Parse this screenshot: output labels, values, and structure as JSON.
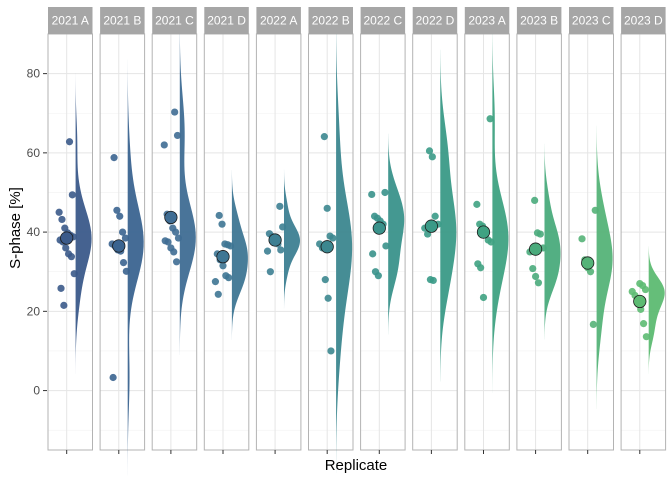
{
  "chart_data": {
    "type": "scatter",
    "subtype": "raincloud (half-violin + jittered points + mean point), faceted",
    "xlabel": "Replicate",
    "ylabel": "S-phase [%]",
    "ylim": [
      -15,
      90
    ],
    "yticks": [
      0,
      20,
      40,
      60,
      80
    ],
    "grid": true,
    "legend": "none",
    "colors": {
      "strip_bg": "#a6a6a6",
      "panel_border": "#b3b3b3",
      "grid": "#e5e5e5",
      "mean_stroke": "#1a1a1a"
    },
    "facets": [
      {
        "label": "2021 A",
        "color": "#3b5a8a",
        "mean": 38.5,
        "points": [
          62.8,
          49.4,
          45.0,
          43.2,
          41.0,
          39.8,
          39.2,
          38.8,
          38.0,
          37.5,
          36.0,
          34.5,
          33.8,
          29.5,
          25.8,
          21.5
        ]
      },
      {
        "label": "2021 B",
        "color": "#3b6490",
        "mean": 36.5,
        "points": [
          58.8,
          45.5,
          44.0,
          40.0,
          38.5,
          37.0,
          36.5,
          35.5,
          35.2,
          32.3,
          30.1,
          3.3
        ]
      },
      {
        "label": "2021 C",
        "color": "#3f6d94",
        "mean": 43.7,
        "points": [
          70.3,
          64.4,
          62.0,
          44.5,
          42.8,
          41.0,
          40.0,
          38.5,
          37.8,
          37.5,
          36.0,
          35.0,
          32.5
        ]
      },
      {
        "label": "2021 D",
        "color": "#3e7694",
        "mean": 33.8,
        "points": [
          44.2,
          42.0,
          37.0,
          36.8,
          36.5,
          34.5,
          33.0,
          31.5,
          29.0,
          28.5,
          27.5,
          24.3
        ]
      },
      {
        "label": "2022 A",
        "color": "#3d7f92",
        "mean": 38.0,
        "points": [
          46.5,
          41.3,
          39.6,
          38.9,
          38.0,
          37.0,
          35.5,
          35.2,
          30.0
        ]
      },
      {
        "label": "2022 B",
        "color": "#3c878f",
        "mean": 36.3,
        "points": [
          64.1,
          46.0,
          39.0,
          38.5,
          37.0,
          36.0,
          28.0,
          23.3,
          10.0
        ]
      },
      {
        "label": "2022 C",
        "color": "#3a928b",
        "mean": 41.0,
        "points": [
          50.0,
          49.5,
          44.0,
          43.5,
          42.8,
          42.0,
          36.5,
          34.5,
          30.0,
          29.0
        ]
      },
      {
        "label": "2022 D",
        "color": "#3a9a87",
        "mean": 41.5,
        "points": [
          60.5,
          59.0,
          44.0,
          42.0,
          41.0,
          39.5,
          28.0,
          27.8
        ]
      },
      {
        "label": "2023 A",
        "color": "#3fa282",
        "mean": 40.0,
        "points": [
          68.6,
          47.0,
          42.0,
          41.5,
          40.5,
          38.0,
          37.5,
          32.0,
          31.0,
          23.5
        ]
      },
      {
        "label": "2023 B",
        "color": "#4aab7c",
        "mean": 35.7,
        "points": [
          48.0,
          39.8,
          39.5,
          36.0,
          35.0,
          30.8,
          28.8,
          27.2
        ]
      },
      {
        "label": "2023 C",
        "color": "#55b378",
        "mean": 32.2,
        "points": [
          45.5,
          38.3,
          33.0,
          31.0,
          30.0,
          16.7
        ]
      },
      {
        "label": "2023 D",
        "color": "#5dbb72",
        "mean": 22.5,
        "points": [
          27.0,
          26.5,
          25.5,
          25.0,
          24.0,
          22.0,
          20.5,
          16.9,
          13.6
        ]
      }
    ]
  }
}
